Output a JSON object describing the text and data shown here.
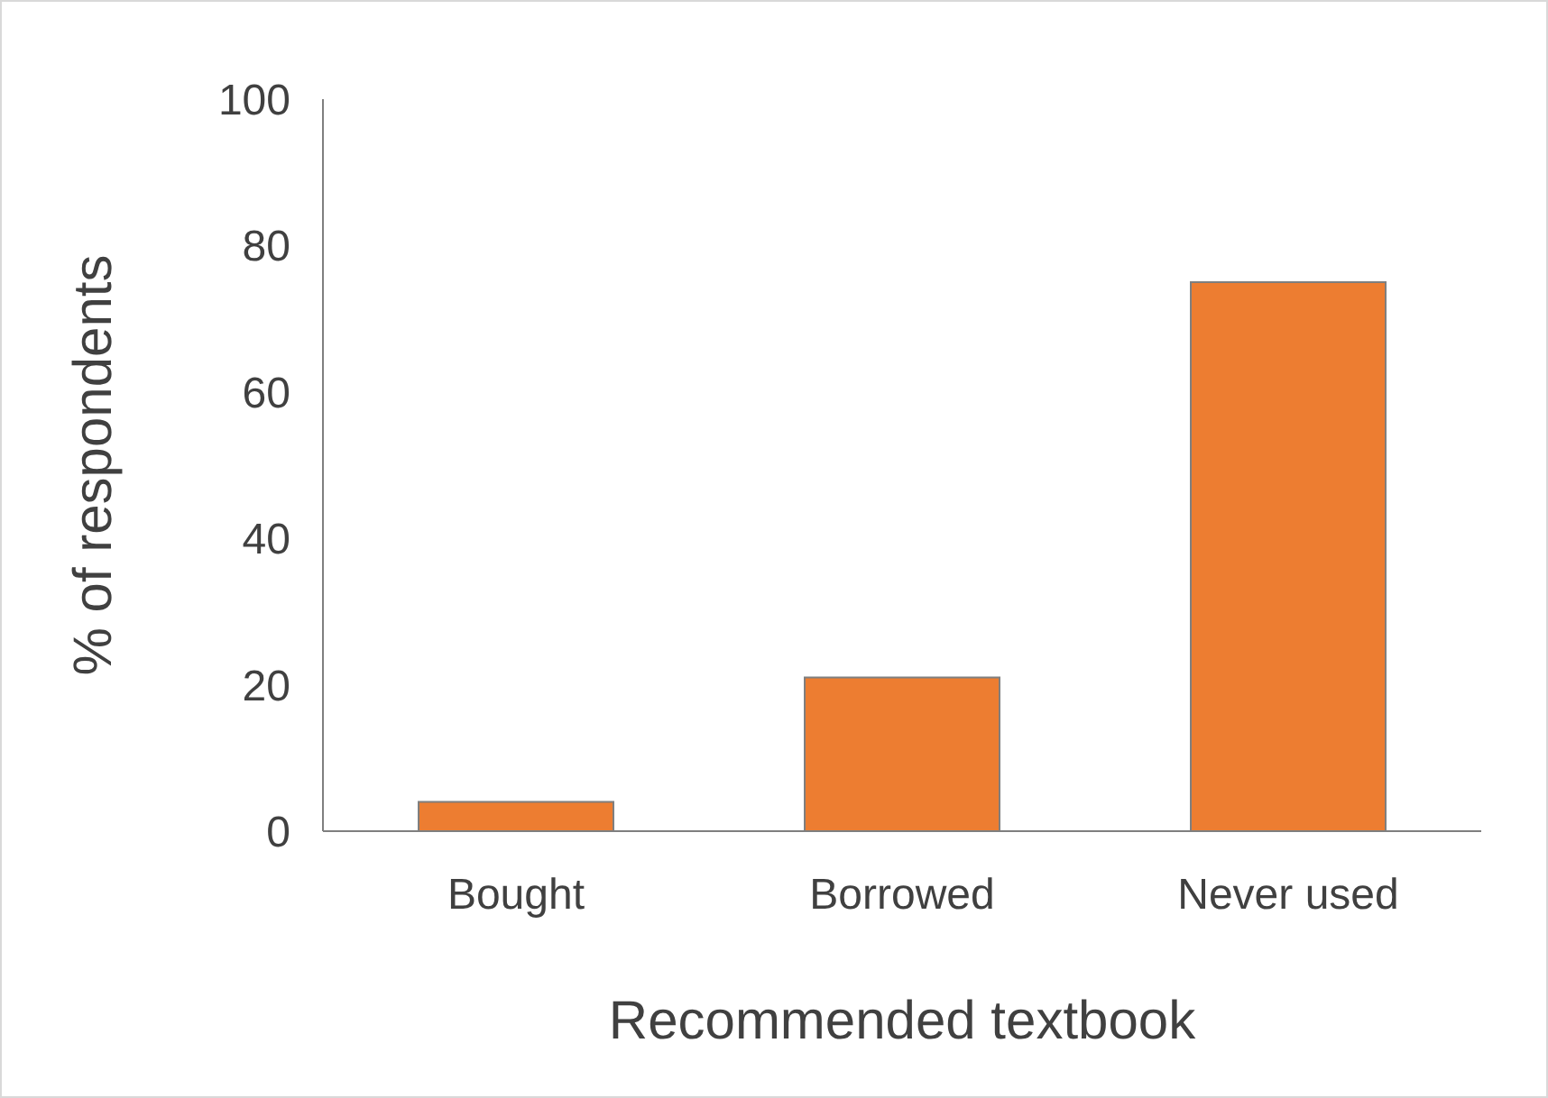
{
  "chart_data": {
    "type": "bar",
    "xlabel": "Recommended textbook",
    "ylabel": "% of respondents",
    "categories": [
      "Bought",
      "Borrowed",
      "Never used"
    ],
    "values": [
      4,
      21,
      75
    ],
    "color": "#ed7d31",
    "ylim": [
      0,
      100
    ],
    "yticks": [
      0,
      20,
      40,
      60,
      80,
      100
    ],
    "grid": false
  }
}
